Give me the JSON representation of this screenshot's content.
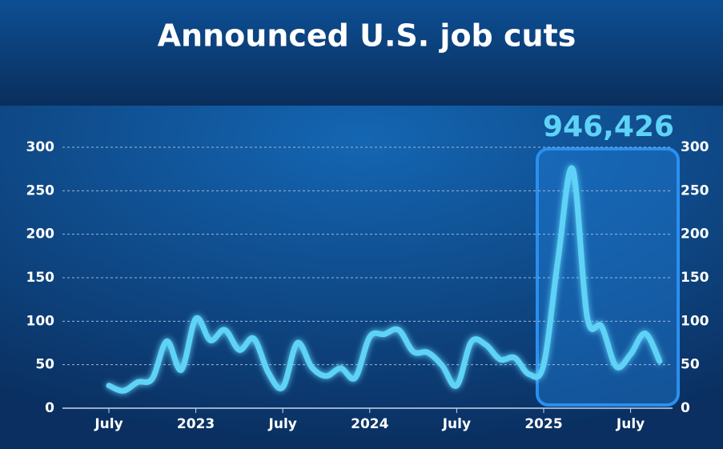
{
  "chart_data": {
    "type": "line",
    "title": "Announced U.S. job cuts",
    "annotation": "946,426",
    "categories": [
      "July",
      null,
      null,
      null,
      null,
      null,
      "2023",
      null,
      null,
      null,
      null,
      null,
      "July",
      null,
      null,
      null,
      null,
      null,
      "2024",
      null,
      null,
      null,
      null,
      null,
      "July",
      null,
      null,
      null,
      null,
      null,
      "2025",
      null,
      null,
      null,
      null,
      null,
      "July",
      null,
      null
    ],
    "series": [
      {
        "name": "Announced U.S. job cuts",
        "color": "#5fd3f7",
        "values": [
          26,
          20,
          30,
          34,
          77,
          44,
          103,
          78,
          90,
          67,
          80,
          41,
          24,
          75,
          47,
          37,
          46,
          35,
          82,
          85,
          90,
          65,
          64,
          49,
          26,
          76,
          73,
          56,
          58,
          39,
          50,
          172,
          275,
          105,
          94,
          48,
          62,
          86,
          54
        ]
      }
    ],
    "ylim": [
      0,
      300
    ],
    "yticks": [
      0,
      50,
      100,
      150,
      200,
      250,
      300
    ],
    "grid": true
  }
}
